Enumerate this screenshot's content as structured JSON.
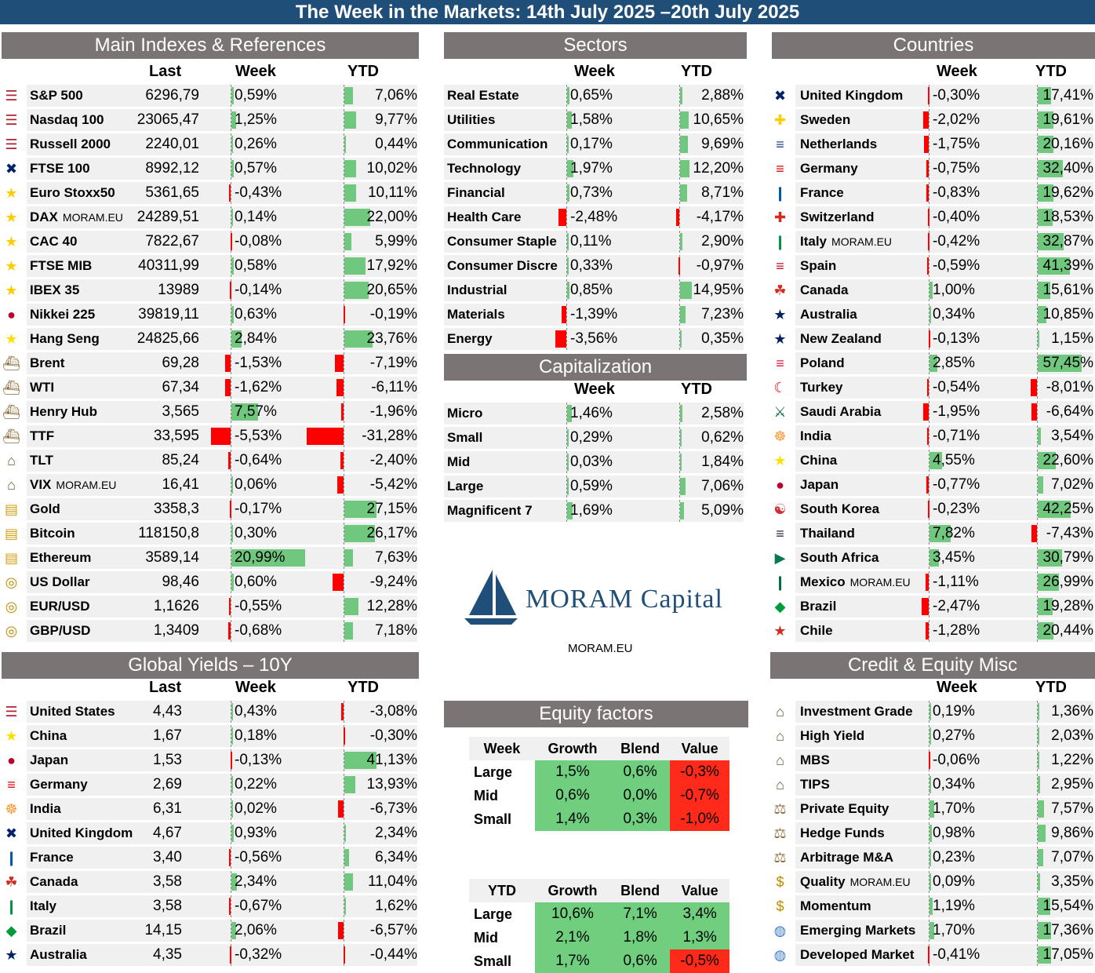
{
  "title": "The Week in the Markets: 14th July 2025 –20th July 2025",
  "watermark": "MORAM.EU",
  "brand": {
    "name": "MORAM Capital",
    "site": "MORAM.EU"
  },
  "colors": {
    "header": "#1f4e79",
    "panel": "#7a7574",
    "gain": "#70c77e",
    "loss": "#ff0000"
  },
  "main_indexes": {
    "title": "Main Indexes & References",
    "headers": {
      "last": "Last",
      "week": "Week",
      "ytd": "YTD"
    },
    "rows": [
      {
        "icon": "us-flag-icon",
        "name": "S&P 500",
        "last": "6296,79",
        "week": "0,59%",
        "ytd": "7,06%"
      },
      {
        "icon": "us-flag-icon",
        "name": "Nasdaq 100",
        "last": "23065,47",
        "week": "1,25%",
        "ytd": "9,77%"
      },
      {
        "icon": "us-flag-icon",
        "name": "Russell 2000",
        "last": "2240,01",
        "week": "0,26%",
        "ytd": "0,44%"
      },
      {
        "icon": "uk-flag-icon",
        "name": "FTSE 100",
        "last": "8992,12",
        "week": "0,57%",
        "ytd": "10,02%"
      },
      {
        "icon": "eu-flag-icon",
        "name": "Euro Stoxx50",
        "last": "5361,65",
        "week": "-0,43%",
        "ytd": "10,11%"
      },
      {
        "icon": "eu-flag-icon",
        "name": "DAX",
        "last": "24289,51",
        "week": "0,14%",
        "ytd": "22,00%",
        "wm": "MORAM.EU"
      },
      {
        "icon": "eu-flag-icon",
        "name": "CAC 40",
        "last": "7822,67",
        "week": "-0,08%",
        "ytd": "5,99%"
      },
      {
        "icon": "eu-flag-icon",
        "name": "FTSE MIB",
        "last": "40311,99",
        "week": "0,58%",
        "ytd": "17,92%"
      },
      {
        "icon": "eu-flag-icon",
        "name": "IBEX 35",
        "last": "13989",
        "week": "-0,14%",
        "ytd": "20,65%"
      },
      {
        "icon": "japan-flag-icon",
        "name": "Nikkei 225",
        "last": "39819,11",
        "week": "0,63%",
        "ytd": "-0,19%"
      },
      {
        "icon": "china-flag-icon",
        "name": "Hang Seng",
        "last": "24825,66",
        "week": "2,84%",
        "ytd": "23,76%"
      },
      {
        "icon": "oil-rig-icon",
        "name": "Brent",
        "last": "69,28",
        "week": "-1,53%",
        "ytd": "-7,19%"
      },
      {
        "icon": "oil-rig-icon",
        "name": "WTI",
        "last": "67,34",
        "week": "-1,62%",
        "ytd": "-6,11%"
      },
      {
        "icon": "oil-rig-icon",
        "name": "Henry Hub",
        "last": "3,565",
        "week": "7,57%",
        "ytd": "-1,96%"
      },
      {
        "icon": "oil-rig-icon",
        "name": "TTF",
        "last": "33,595",
        "week": "-5,53%",
        "ytd": "-31,28%"
      },
      {
        "icon": "bank-icon",
        "name": "TLT",
        "last": "85,24",
        "week": "-0,64%",
        "ytd": "-2,40%"
      },
      {
        "icon": "bank-icon",
        "name": "VIX",
        "last": "16,41",
        "week": "0,06%",
        "ytd": "-5,42%",
        "wm": "MORAM.EU"
      },
      {
        "icon": "gold-bars-icon",
        "name": "Gold",
        "last": "3358,3",
        "week": "-0,17%",
        "ytd": "27,15%"
      },
      {
        "icon": "gold-bars-icon",
        "name": "Bitcoin",
        "last": "118150,8",
        "week": "0,30%",
        "ytd": "26,17%"
      },
      {
        "icon": "gold-bars-icon",
        "name": "Ethereum",
        "last": "3589,14",
        "week": "20,99%",
        "ytd": "7,63%"
      },
      {
        "icon": "coins-icon",
        "name": "US Dollar",
        "last": "98,46",
        "week": "0,60%",
        "ytd": "-9,24%"
      },
      {
        "icon": "coins-icon",
        "name": "EUR/USD",
        "last": "1,1626",
        "week": "-0,55%",
        "ytd": "12,28%"
      },
      {
        "icon": "coins-icon",
        "name": "GBP/USD",
        "last": "1,3409",
        "week": "-0,68%",
        "ytd": "7,18%"
      }
    ]
  },
  "sectors": {
    "title": "Sectors",
    "headers": {
      "week": "Week",
      "ytd": "YTD"
    },
    "rows": [
      {
        "name": "Real Estate",
        "week": "0,65%",
        "ytd": "2,88%"
      },
      {
        "name": "Utilities",
        "week": "1,58%",
        "ytd": "10,65%"
      },
      {
        "name": "Communication",
        "week": "0,17%",
        "ytd": "9,69%"
      },
      {
        "name": "Technology",
        "week": "1,97%",
        "ytd": "12,20%"
      },
      {
        "name": "Financial",
        "week": "0,73%",
        "ytd": "8,71%"
      },
      {
        "name": "Health Care",
        "week": "-2,48%",
        "ytd": "-4,17%"
      },
      {
        "name": "Consumer Staple",
        "week": "0,11%",
        "ytd": "2,90%"
      },
      {
        "name": "Consumer Discre",
        "week": "0,33%",
        "ytd": "-0,97%"
      },
      {
        "name": "Industrial",
        "week": "0,85%",
        "ytd": "14,95%"
      },
      {
        "name": "Materials",
        "week": "-1,39%",
        "ytd": "7,23%"
      },
      {
        "name": "Energy",
        "week": "-3,56%",
        "ytd": "0,35%"
      }
    ]
  },
  "capitalization": {
    "title": "Capitalization",
    "headers": {
      "week": "Week",
      "ytd": "YTD"
    },
    "rows": [
      {
        "name": "Micro",
        "week": "1,46%",
        "ytd": "2,58%"
      },
      {
        "name": "Small",
        "week": "0,29%",
        "ytd": "0,62%"
      },
      {
        "name": "Mid",
        "week": "0,03%",
        "ytd": "1,84%"
      },
      {
        "name": "Large",
        "week": "0,59%",
        "ytd": "7,06%"
      },
      {
        "name": "Magnificent 7",
        "week": "1,69%",
        "ytd": "5,09%"
      }
    ]
  },
  "countries": {
    "title": "Countries",
    "headers": {
      "week": "Week",
      "ytd": "YTD"
    },
    "rows": [
      {
        "icon": "uk-flag-icon",
        "name": "United Kingdom",
        "week": "-0,30%",
        "ytd": "17,41%"
      },
      {
        "icon": "sweden-flag-icon",
        "name": "Sweden",
        "week": "-2,02%",
        "ytd": "19,61%"
      },
      {
        "icon": "netherlands-flag-icon",
        "name": "Netherlands",
        "week": "-1,75%",
        "ytd": "20,16%"
      },
      {
        "icon": "germany-flag-icon",
        "name": "Germany",
        "week": "-0,75%",
        "ytd": "32,40%"
      },
      {
        "icon": "france-flag-icon",
        "name": "France",
        "week": "-0,83%",
        "ytd": "19,62%"
      },
      {
        "icon": "switzerland-flag-icon",
        "name": "Switzerland",
        "week": "-0,40%",
        "ytd": "18,53%"
      },
      {
        "icon": "italy-flag-icon",
        "name": "Italy",
        "week": "-0,42%",
        "ytd": "32,87%",
        "wm": "MORAM.EU"
      },
      {
        "icon": "spain-flag-icon",
        "name": "Spain",
        "week": "-0,59%",
        "ytd": "41,39%"
      },
      {
        "icon": "canada-flag-icon",
        "name": "Canada",
        "week": "1,00%",
        "ytd": "15,61%"
      },
      {
        "icon": "australia-flag-icon",
        "name": "Australia",
        "week": "0,34%",
        "ytd": "10,85%"
      },
      {
        "icon": "new-zealand-flag-icon",
        "name": "New Zealand",
        "week": "-0,13%",
        "ytd": "1,15%"
      },
      {
        "icon": "poland-flag-icon",
        "name": "Poland",
        "week": "2,85%",
        "ytd": "57,45%"
      },
      {
        "icon": "turkey-flag-icon",
        "name": "Turkey",
        "week": "-0,54%",
        "ytd": "-8,01%"
      },
      {
        "icon": "saudi-flag-icon",
        "name": "Saudi Arabia",
        "week": "-1,95%",
        "ytd": "-6,64%"
      },
      {
        "icon": "india-flag-icon",
        "name": "India",
        "week": "-0,71%",
        "ytd": "3,54%"
      },
      {
        "icon": "china-flag-icon",
        "name": "China",
        "week": "4,55%",
        "ytd": "22,60%"
      },
      {
        "icon": "japan-flag-icon",
        "name": "Japan",
        "week": "-0,77%",
        "ytd": "7,02%"
      },
      {
        "icon": "korea-flag-icon",
        "name": "South Korea",
        "week": "-0,23%",
        "ytd": "42,25%"
      },
      {
        "icon": "thailand-flag-icon",
        "name": "Thailand",
        "week": "7,82%",
        "ytd": "-7,43%"
      },
      {
        "icon": "south-africa-flag-icon",
        "name": "South Africa",
        "week": "3,45%",
        "ytd": "30,79%"
      },
      {
        "icon": "mexico-flag-icon",
        "name": "Mexico",
        "week": "-1,11%",
        "ytd": "26,99%",
        "wm": "MORAM.EU"
      },
      {
        "icon": "brazil-flag-icon",
        "name": "Brazil",
        "week": "-2,47%",
        "ytd": "19,28%"
      },
      {
        "icon": "chile-flag-icon",
        "name": "Chile",
        "week": "-1,28%",
        "ytd": "20,44%"
      }
    ]
  },
  "global_yields": {
    "title": "Global Yields – 10Y",
    "headers": {
      "last": "Last",
      "week": "Week",
      "ytd": "YTD"
    },
    "rows": [
      {
        "icon": "us-flag-icon",
        "name": "United States",
        "last": "4,43",
        "week": "0,43%",
        "ytd": "-3,08%"
      },
      {
        "icon": "china-flag-icon",
        "name": "China",
        "last": "1,67",
        "week": "0,18%",
        "ytd": "-0,30%"
      },
      {
        "icon": "japan-flag-icon",
        "name": "Japan",
        "last": "1,53",
        "week": "-0,13%",
        "ytd": "41,13%"
      },
      {
        "icon": "germany-flag-icon",
        "name": "Germany",
        "last": "2,69",
        "week": "0,22%",
        "ytd": "13,93%"
      },
      {
        "icon": "india-flag-icon",
        "name": "India",
        "last": "6,31",
        "week": "0,02%",
        "ytd": "-6,73%"
      },
      {
        "icon": "uk-flag-icon",
        "name": "United Kingdom",
        "last": "4,67",
        "week": "0,93%",
        "ytd": "2,34%"
      },
      {
        "icon": "france-flag-icon",
        "name": "France",
        "last": "3,40",
        "week": "-0,56%",
        "ytd": "6,34%"
      },
      {
        "icon": "canada-flag-icon",
        "name": "Canada",
        "last": "3,58",
        "week": "2,34%",
        "ytd": "11,04%"
      },
      {
        "icon": "italy-flag-icon",
        "name": "Italy",
        "last": "3,58",
        "week": "-0,67%",
        "ytd": "1,62%"
      },
      {
        "icon": "brazil-flag-icon",
        "name": "Brazil",
        "last": "14,15",
        "week": "2,06%",
        "ytd": "-6,57%"
      },
      {
        "icon": "australia-flag-icon",
        "name": "Australia",
        "last": "4,35",
        "week": "-0,32%",
        "ytd": "-0,44%"
      }
    ]
  },
  "credit_equity": {
    "title": "Credit & Equity Misc",
    "headers": {
      "week": "Week",
      "ytd": "YTD"
    },
    "rows": [
      {
        "icon": "bank-icon",
        "name": "Investment Grade",
        "week": "0,19%",
        "ytd": "1,36%"
      },
      {
        "icon": "bank-icon",
        "name": "High Yield",
        "week": "0,27%",
        "ytd": "2,03%"
      },
      {
        "icon": "bank-icon",
        "name": "MBS",
        "week": "-0,06%",
        "ytd": "1,22%"
      },
      {
        "icon": "bank-icon",
        "name": "TIPS",
        "week": "0,34%",
        "ytd": "2,95%"
      },
      {
        "icon": "scales-icon",
        "name": "Private Equity",
        "week": "1,70%",
        "ytd": "7,57%"
      },
      {
        "icon": "scales-icon",
        "name": "Hedge Funds",
        "week": "0,98%",
        "ytd": "9,86%"
      },
      {
        "icon": "scales-icon",
        "name": "Arbitrage M&A",
        "week": "0,23%",
        "ytd": "7,07%"
      },
      {
        "icon": "coins-dollar-icon",
        "name": "Quality",
        "week": "0,09%",
        "ytd": "3,35%",
        "wm": "MORAM.EU"
      },
      {
        "icon": "coins-dollar-icon",
        "name": "Momentum",
        "week": "1,19%",
        "ytd": "15,54%"
      },
      {
        "icon": "globe-icon",
        "name": "Emerging Markets",
        "week": "1,70%",
        "ytd": "17,36%"
      },
      {
        "icon": "globe-icon",
        "name": "Developed Market",
        "week": "-0,41%",
        "ytd": "17,05%"
      }
    ]
  },
  "equity_factors": {
    "title": "Equity factors",
    "week": {
      "corner": "Week",
      "cols": [
        "Growth",
        "Blend",
        "Value"
      ],
      "rows": [
        {
          "label": "Large",
          "vals": [
            "1,5%",
            "0,6%",
            "-0,3%"
          ]
        },
        {
          "label": "Mid",
          "vals": [
            "0,6%",
            "0,0%",
            "-0,7%"
          ]
        },
        {
          "label": "Small",
          "vals": [
            "1,4%",
            "0,3%",
            "-1,0%"
          ]
        }
      ]
    },
    "ytd": {
      "corner": "YTD",
      "cols": [
        "Growth",
        "Blend",
        "Value"
      ],
      "rows": [
        {
          "label": "Large",
          "vals": [
            "10,6%",
            "7,1%",
            "3,4%"
          ]
        },
        {
          "label": "Mid",
          "vals": [
            "2,1%",
            "1,8%",
            "1,3%"
          ]
        },
        {
          "label": "Small",
          "vals": [
            "1,7%",
            "0,6%",
            "-0,5%"
          ]
        }
      ]
    }
  }
}
